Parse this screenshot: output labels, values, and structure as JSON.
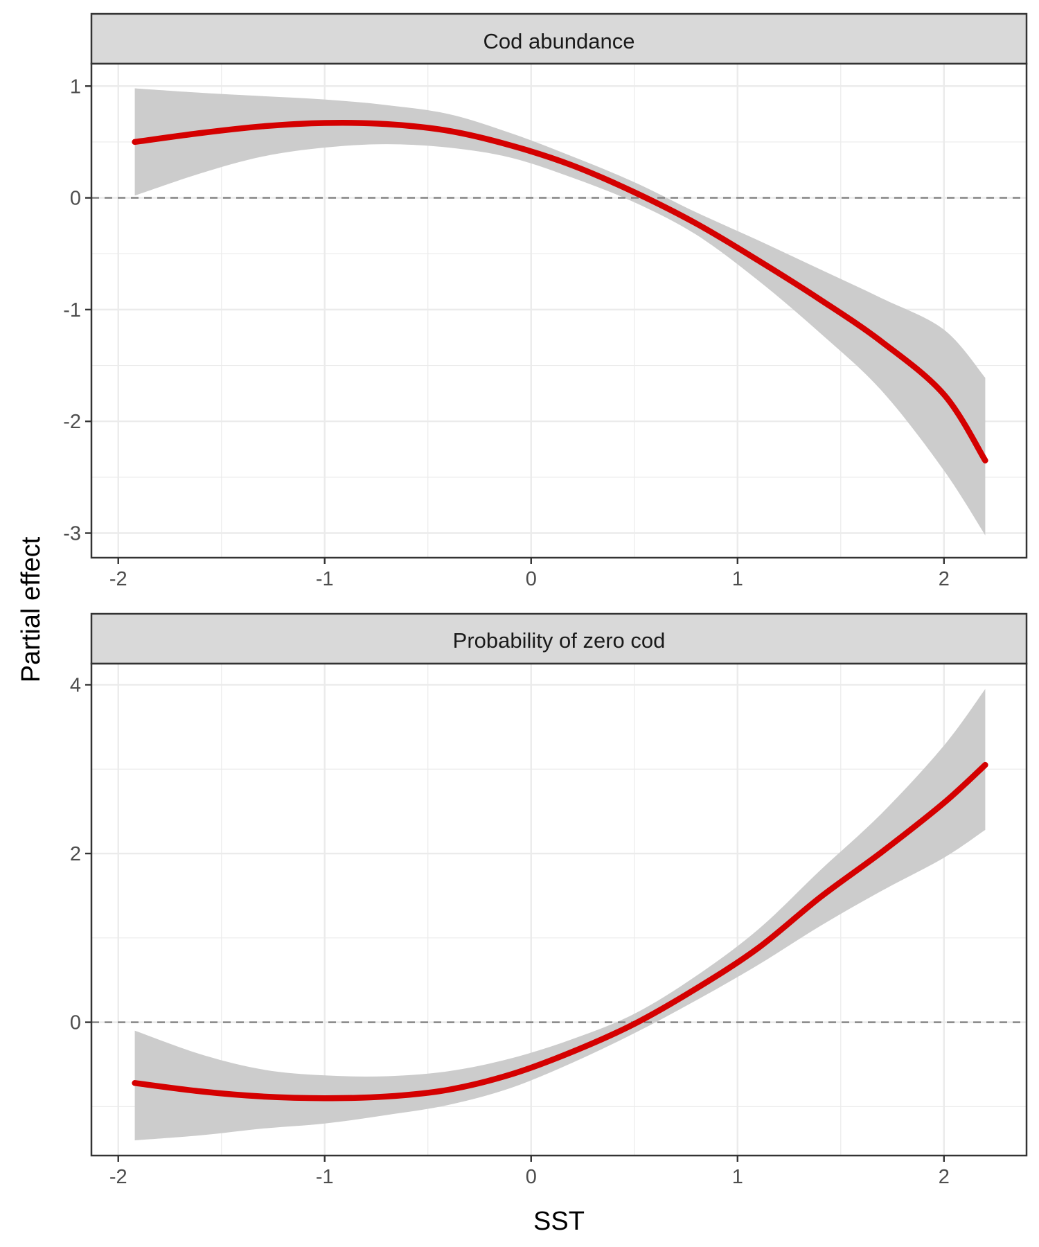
{
  "figure": {
    "ylabel": "Partial effect",
    "xlabel": "SST"
  },
  "colors": {
    "line": "#d40000",
    "ribbon": "#cccccc",
    "strip": "#d9d9d9",
    "grid": "#ebebeb",
    "zero_line": "#808080",
    "panel_border": "#333333"
  },
  "chart_data": [
    {
      "type": "line",
      "title": "Cod abundance",
      "xlabel": "SST",
      "ylabel": "Partial effect",
      "xlim": [
        -2.13,
        2.4
      ],
      "ylim": [
        -3.22,
        1.2
      ],
      "x_ticks": [
        -2,
        -1,
        0,
        1,
        2
      ],
      "x_tick_labels": [
        "-2",
        "-1",
        "0",
        "1",
        "2"
      ],
      "y_ticks": [
        1,
        0,
        -1,
        -2,
        -3
      ],
      "y_tick_labels": [
        "1",
        "0",
        "-1",
        "-2",
        "-3"
      ],
      "grid": true,
      "reference_line": {
        "y": 0,
        "style": "dashed"
      },
      "series": [
        {
          "kind": "fitted smooth with confidence band",
          "x": [
            -1.92,
            -1.6,
            -1.3,
            -1.0,
            -0.7,
            -0.4,
            -0.1,
            0.2,
            0.5,
            0.8,
            1.1,
            1.4,
            1.7,
            2.0,
            2.2
          ],
          "y": [
            0.5,
            0.58,
            0.64,
            0.67,
            0.66,
            0.6,
            0.47,
            0.29,
            0.05,
            -0.23,
            -0.56,
            -0.91,
            -1.29,
            -1.76,
            -2.35
          ],
          "lower": [
            0.02,
            0.22,
            0.37,
            0.45,
            0.48,
            0.45,
            0.36,
            0.18,
            -0.04,
            -0.33,
            -0.74,
            -1.21,
            -1.73,
            -2.44,
            -3.02
          ],
          "upper": [
            0.98,
            0.94,
            0.91,
            0.88,
            0.83,
            0.75,
            0.58,
            0.37,
            0.14,
            -0.13,
            -0.38,
            -0.64,
            -0.9,
            -1.18,
            -1.61
          ]
        }
      ]
    },
    {
      "type": "line",
      "title": "Probability of zero cod",
      "xlabel": "SST",
      "ylabel": "Partial effect",
      "xlim": [
        -2.13,
        2.4
      ],
      "ylim": [
        -1.58,
        4.25
      ],
      "x_ticks": [
        -2,
        -1,
        0,
        1,
        2
      ],
      "x_tick_labels": [
        "-2",
        "-1",
        "0",
        "1",
        "2"
      ],
      "y_ticks": [
        4,
        2,
        0
      ],
      "y_tick_labels": [
        "4",
        "2",
        "0"
      ],
      "grid": true,
      "reference_line": {
        "y": 0,
        "style": "dashed"
      },
      "series": [
        {
          "kind": "fitted smooth with confidence band",
          "x": [
            -1.92,
            -1.6,
            -1.3,
            -1.0,
            -0.7,
            -0.4,
            -0.1,
            0.2,
            0.5,
            0.8,
            1.1,
            1.4,
            1.7,
            2.0,
            2.2
          ],
          "y": [
            -0.72,
            -0.82,
            -0.88,
            -0.9,
            -0.88,
            -0.8,
            -0.62,
            -0.35,
            -0.02,
            0.4,
            0.88,
            1.48,
            2.02,
            2.6,
            3.05
          ],
          "lower": [
            -1.4,
            -1.34,
            -1.26,
            -1.2,
            -1.1,
            -0.98,
            -0.78,
            -0.48,
            -0.13,
            0.26,
            0.68,
            1.14,
            1.56,
            1.95,
            2.28
          ],
          "upper": [
            -0.1,
            -0.38,
            -0.56,
            -0.63,
            -0.64,
            -0.58,
            -0.43,
            -0.2,
            0.1,
            0.55,
            1.1,
            1.8,
            2.48,
            3.28,
            3.95
          ]
        }
      ]
    }
  ]
}
